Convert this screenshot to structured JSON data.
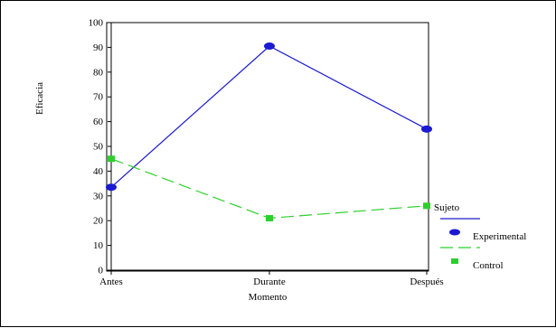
{
  "chart_data": {
    "type": "line",
    "categories": [
      "Antes",
      "Durante",
      "Después"
    ],
    "xlabel": "Momento",
    "ylabel": "Eficacia",
    "ylim": [
      0,
      100
    ],
    "yticks": [
      0,
      10,
      20,
      30,
      40,
      50,
      60,
      70,
      80,
      90,
      100
    ],
    "legend_title": "Sujeto",
    "legend_position": "right",
    "grid": false,
    "series": [
      {
        "name": "Experimental",
        "values": [
          33.5,
          90.5,
          57
        ],
        "color": "#1a1ad0",
        "line": "solid",
        "marker": "circle"
      },
      {
        "name": "Control",
        "values": [
          45,
          21,
          26
        ],
        "color": "#2cd02c",
        "line": "dashed",
        "marker": "square"
      }
    ]
  }
}
